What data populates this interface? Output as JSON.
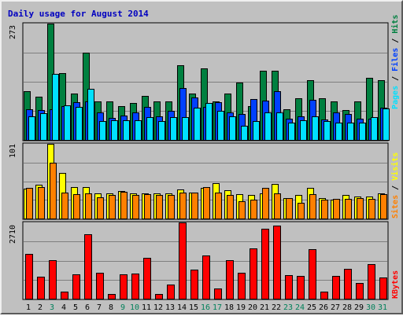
{
  "chart_data": {
    "type": "bar",
    "title": "Daily usage for August 2014",
    "categories": [
      "1",
      "2",
      "3",
      "4",
      "5",
      "6",
      "7",
      "8",
      "9",
      "10",
      "11",
      "12",
      "13",
      "14",
      "15",
      "16",
      "17",
      "18",
      "19",
      "20",
      "21",
      "22",
      "23",
      "24",
      "25",
      "26",
      "27",
      "28",
      "29",
      "30",
      "31"
    ],
    "weekend_days": [
      "3",
      "9",
      "10",
      "16",
      "17",
      "23",
      "24",
      "30",
      "31"
    ],
    "grid": true,
    "panels": [
      {
        "name": "hits-files-pages",
        "ymax_label": "273",
        "ylim": [
          0,
          273
        ],
        "series": [
          {
            "name": "Hits",
            "color": "#008040",
            "values": [
              115,
              102,
              273,
              156,
              108,
              205,
              90,
              90,
              80,
              86,
              104,
              90,
              90,
              175,
              108,
              168,
              90,
              108,
              135,
              80,
              162,
              162,
              72,
              98,
              140,
              98,
              90,
              70,
              90,
              145,
              140
            ]
          },
          {
            "name": "Files",
            "color": "#0040ff",
            "values": [
              72,
              70,
              72,
              80,
              88,
              90,
              64,
              52,
              58,
              64,
              77,
              55,
              68,
              122,
              100,
              78,
              88,
              64,
              60,
              96,
              92,
              115,
              50,
              55,
              94,
              48,
              64,
              60,
              50,
              50,
              76
            ]
          },
          {
            "name": "Pages",
            "color": "#00e0ff",
            "values": [
              56,
              62,
              155,
              82,
              78,
              120,
              44,
              46,
              46,
              46,
              54,
              44,
              54,
              54,
              76,
              86,
              68,
              56,
              34,
              44,
              64,
              64,
              40,
              46,
              56,
              44,
              40,
              40,
              40,
              54,
              74
            ]
          }
        ]
      },
      {
        "name": "visits-sites",
        "ymax_label": "101",
        "ylim": [
          0,
          101
        ],
        "series": [
          {
            "name": "Visits",
            "color": "#ffff00",
            "values": [
              40,
              46,
              101,
              62,
              42,
              42,
              34,
              34,
              37,
              34,
              34,
              34,
              34,
              39,
              35,
              41,
              48,
              38,
              33,
              32,
              34,
              47,
              28,
              32,
              41,
              28,
              25,
              32,
              30,
              30,
              34
            ]
          },
          {
            "name": "Sites",
            "color": "#ff8000",
            "values": [
              41,
              42,
              75,
              35,
              33,
              34,
              29,
              32,
              36,
              32,
              33,
              32,
              32,
              35,
              35,
              43,
              35,
              32,
              23,
              25,
              41,
              34,
              28,
              21,
              33,
              26,
              27,
              27,
              28,
              27,
              33
            ]
          }
        ]
      },
      {
        "name": "kbytes",
        "ymax_label": "2710",
        "ylim": [
          0,
          2710
        ],
        "series": [
          {
            "name": "KBytes",
            "color": "#ff0000",
            "values": [
              1585,
              795,
              1380,
              265,
              860,
              2280,
              915,
              165,
              860,
              905,
              1450,
              175,
              515,
              2710,
              1035,
              1540,
              365,
              1360,
              910,
              1785,
              2480,
              2610,
              830,
              800,
              1765,
              255,
              820,
              1050,
              555,
              1240,
              755
            ]
          }
        ]
      }
    ]
  }
}
